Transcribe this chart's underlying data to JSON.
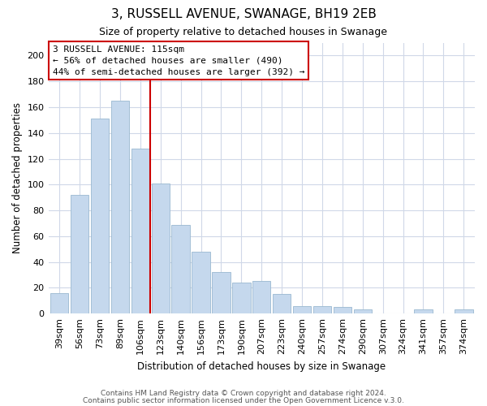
{
  "title": "3, RUSSELL AVENUE, SWANAGE, BH19 2EB",
  "subtitle": "Size of property relative to detached houses in Swanage",
  "xlabel": "Distribution of detached houses by size in Swanage",
  "ylabel": "Number of detached properties",
  "bar_labels": [
    "39sqm",
    "56sqm",
    "73sqm",
    "89sqm",
    "106sqm",
    "123sqm",
    "140sqm",
    "156sqm",
    "173sqm",
    "190sqm",
    "207sqm",
    "223sqm",
    "240sqm",
    "257sqm",
    "274sqm",
    "290sqm",
    "307sqm",
    "324sqm",
    "341sqm",
    "357sqm",
    "374sqm"
  ],
  "bar_values": [
    16,
    92,
    151,
    165,
    128,
    101,
    69,
    48,
    32,
    24,
    25,
    15,
    6,
    6,
    5,
    3,
    0,
    0,
    3,
    0,
    3
  ],
  "bar_color": "#c5d8ed",
  "bar_edge_color": "#9ab8d0",
  "vline_x": 4.5,
  "vline_color": "#cc0000",
  "annotation_title": "3 RUSSELL AVENUE: 115sqm",
  "annotation_line1": "← 56% of detached houses are smaller (490)",
  "annotation_line2": "44% of semi-detached houses are larger (392) →",
  "box_facecolor": "#ffffff",
  "box_edgecolor": "#cc0000",
  "ylim": [
    0,
    210
  ],
  "yticks": [
    0,
    20,
    40,
    60,
    80,
    100,
    120,
    140,
    160,
    180,
    200
  ],
  "footer1": "Contains HM Land Registry data © Crown copyright and database right 2024.",
  "footer2": "Contains public sector information licensed under the Open Government Licence v.3.0.",
  "background_color": "#ffffff",
  "grid_color": "#d0d8e8",
  "title_fontsize": 11,
  "subtitle_fontsize": 9,
  "xlabel_fontsize": 8.5,
  "ylabel_fontsize": 8.5,
  "tick_fontsize": 8,
  "annotation_fontsize": 8,
  "footer_fontsize": 6.5
}
